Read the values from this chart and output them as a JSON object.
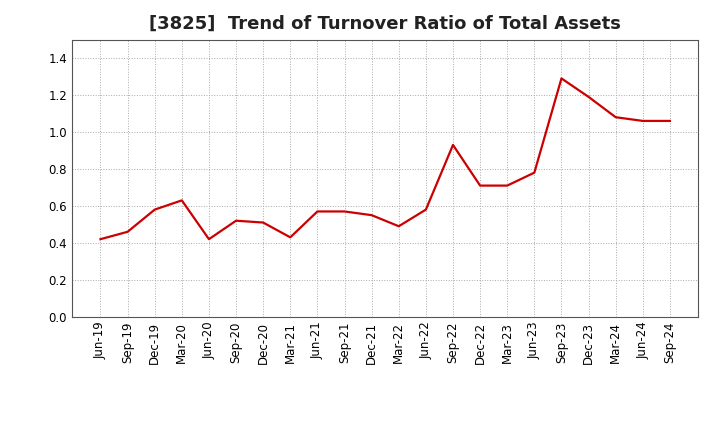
{
  "title": "[3825]  Trend of Turnover Ratio of Total Assets",
  "x_labels": [
    "Jun-19",
    "Sep-19",
    "Dec-19",
    "Mar-20",
    "Jun-20",
    "Sep-20",
    "Dec-20",
    "Mar-21",
    "Jun-21",
    "Sep-21",
    "Dec-21",
    "Mar-22",
    "Jun-22",
    "Sep-22",
    "Dec-22",
    "Mar-23",
    "Jun-23",
    "Sep-23",
    "Dec-23",
    "Mar-24",
    "Jun-24",
    "Sep-24"
  ],
  "values": [
    0.42,
    0.46,
    0.58,
    0.63,
    0.42,
    0.52,
    0.51,
    0.43,
    0.57,
    0.57,
    0.55,
    0.49,
    0.58,
    0.93,
    0.71,
    0.71,
    0.78,
    1.29,
    1.19,
    1.08,
    1.06,
    1.06
  ],
  "line_color": "#cc0000",
  "line_width": 1.6,
  "ylim": [
    0.0,
    1.5
  ],
  "yticks": [
    0.0,
    0.2,
    0.4,
    0.6,
    0.8,
    1.0,
    1.2,
    1.4
  ],
  "bg_color": "#ffffff",
  "plot_bg_color": "#ffffff",
  "grid_color": "#aaaaaa",
  "title_fontsize": 13,
  "tick_fontsize": 8.5
}
